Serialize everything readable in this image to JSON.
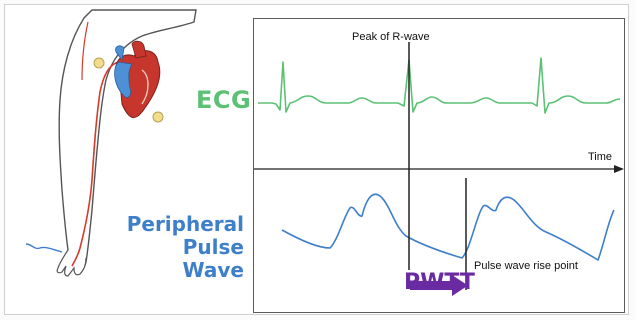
{
  "labels": {
    "ecg": "ECG",
    "peripheral_line1": "Peripheral",
    "peripheral_line2": "Pulse Wave",
    "pwtt": "PWTT",
    "peak": "Peak of R-wave",
    "time": "Time",
    "rise": "Pulse wave rise point"
  },
  "colors": {
    "ecg": "#5cc174",
    "pulse": "#3d7fc9",
    "pwtt": "#6a2aa2",
    "artery": "#d43b2a",
    "outline": "#555555"
  }
}
